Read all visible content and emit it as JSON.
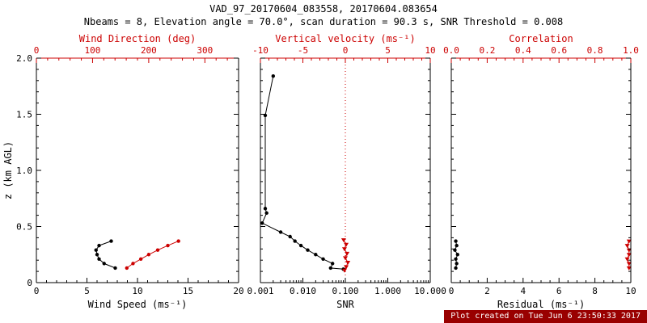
{
  "header": {
    "title": "VAD_97_20170604_083558, 20170604.083654",
    "subtitle": "Nbeams = 8, Elevation angle = 70.0°, scan duration = 90.3 s, SNR Threshold = 0.008"
  },
  "footer": {
    "created": "Plot created on Tue Jun  6 23:50:33 2017"
  },
  "colors": {
    "accent": "#cc0000",
    "black": "#000000",
    "footer_bg": "#990000",
    "footer_fg": "#ffffff"
  },
  "chart_data": [
    {
      "type": "line",
      "ylabel": "z (km AGL)",
      "ylim": [
        0,
        2
      ],
      "yticks": [
        0,
        0.5,
        1.0,
        1.5,
        2.0
      ],
      "ytick_labels": [
        "0",
        "0.5",
        "1.0",
        "1.5",
        "2.0"
      ],
      "x_bottom": {
        "label": "Wind Speed (ms⁻¹)",
        "lim": [
          0,
          20
        ],
        "ticks": [
          0,
          5,
          10,
          15,
          20
        ],
        "tick_labels": [
          "0",
          "5",
          "10",
          "15",
          "20"
        ],
        "scale": "linear",
        "minor_div": 5
      },
      "x_top": {
        "label": "Wind Direction (deg)",
        "lim": [
          0,
          360
        ],
        "ticks": [
          0,
          100,
          200,
          300
        ],
        "tick_labels": [
          "0",
          "100",
          "200",
          "300"
        ],
        "scale": "linear",
        "minor_div": 5
      },
      "series": [
        {
          "name": "wind-speed",
          "axis": "bottom",
          "color": "black",
          "marker": "circle",
          "points": [
            [
              7.4,
              0.37
            ],
            [
              6.2,
              0.33
            ],
            [
              5.9,
              0.29
            ],
            [
              6.0,
              0.25
            ],
            [
              6.2,
              0.21
            ],
            [
              6.7,
              0.17
            ],
            [
              7.8,
              0.13
            ]
          ]
        },
        {
          "name": "wind-direction",
          "axis": "top",
          "color": "red",
          "marker": "circle",
          "points": [
            [
              253,
              0.37
            ],
            [
              234,
              0.33
            ],
            [
              216,
              0.29
            ],
            [
              200,
              0.25
            ],
            [
              186,
              0.21
            ],
            [
              172,
              0.17
            ],
            [
              161,
              0.13
            ]
          ]
        }
      ],
      "vlines": []
    },
    {
      "type": "line",
      "ylabel": "",
      "ylim": [
        0,
        2
      ],
      "yticks": [
        0,
        0.5,
        1.0,
        1.5,
        2.0
      ],
      "x_bottom": {
        "label": "SNR",
        "lim": [
          0.001,
          10
        ],
        "ticks": [
          0.001,
          0.01,
          0.1,
          1,
          10
        ],
        "tick_labels": [
          "0.001",
          "0.010",
          "0.100",
          "1.000",
          "10.000"
        ],
        "scale": "log"
      },
      "x_top": {
        "label": "Vertical velocity (ms⁻¹)",
        "lim": [
          -10,
          10
        ],
        "ticks": [
          -10,
          -5,
          0,
          5,
          10
        ],
        "tick_labels": [
          "-10",
          "-5",
          "0",
          "5",
          "10"
        ],
        "scale": "linear",
        "minor_div": 5
      },
      "series": [
        {
          "name": "snr-profile",
          "axis": "bottom",
          "color": "black",
          "marker": "circle",
          "points": [
            [
              0.002,
              1.84
            ],
            [
              0.0013,
              1.49
            ],
            [
              0.0013,
              0.66
            ],
            [
              0.0014,
              0.62
            ],
            [
              0.0011,
              0.53
            ],
            [
              0.003,
              0.45
            ],
            [
              0.005,
              0.41
            ],
            [
              0.0065,
              0.37
            ],
            [
              0.009,
              0.33
            ],
            [
              0.013,
              0.29
            ],
            [
              0.02,
              0.25
            ],
            [
              0.03,
              0.21
            ],
            [
              0.05,
              0.17
            ],
            [
              0.045,
              0.13
            ],
            [
              0.09,
              0.12
            ]
          ]
        },
        {
          "name": "vertical-velocity",
          "axis": "top",
          "color": "red",
          "marker": "triangle",
          "points": [
            [
              -0.2,
              0.38
            ],
            [
              0.1,
              0.34
            ],
            [
              -0.1,
              0.3
            ],
            [
              0.2,
              0.26
            ],
            [
              0.0,
              0.22
            ],
            [
              0.3,
              0.18
            ],
            [
              0.1,
              0.14
            ],
            [
              -0.1,
              0.11
            ]
          ]
        }
      ],
      "vlines": [
        {
          "axis": "top",
          "x": 0,
          "color": "red",
          "style": "dotted"
        }
      ]
    },
    {
      "type": "line",
      "ylabel": "",
      "ylim": [
        0,
        2
      ],
      "yticks": [
        0,
        0.5,
        1.0,
        1.5,
        2.0
      ],
      "x_bottom": {
        "label": "Residual (ms⁻¹)",
        "lim": [
          0,
          10
        ],
        "ticks": [
          0,
          2,
          4,
          6,
          8,
          10
        ],
        "tick_labels": [
          "0",
          "2",
          "4",
          "6",
          "8",
          "10"
        ],
        "scale": "linear",
        "minor_div": 4
      },
      "x_top": {
        "label": "Correlation",
        "lim": [
          0,
          1
        ],
        "ticks": [
          0,
          0.2,
          0.4,
          0.6,
          0.8,
          1.0
        ],
        "tick_labels": [
          "0.0",
          "0.2",
          "0.4",
          "0.6",
          "0.8",
          "1.0"
        ],
        "scale": "linear",
        "minor_div": 4
      },
      "series": [
        {
          "name": "residual",
          "axis": "bottom",
          "color": "black",
          "marker": "circle",
          "points": [
            [
              0.25,
              0.37
            ],
            [
              0.3,
              0.33
            ],
            [
              0.2,
              0.29
            ],
            [
              0.35,
              0.25
            ],
            [
              0.25,
              0.21
            ],
            [
              0.3,
              0.17
            ],
            [
              0.25,
              0.13
            ]
          ]
        },
        {
          "name": "correlation",
          "axis": "top",
          "color": "red",
          "marker": "triangle",
          "points": [
            [
              0.99,
              0.37
            ],
            [
              0.98,
              0.33
            ],
            [
              0.99,
              0.29
            ],
            [
              0.99,
              0.25
            ],
            [
              0.98,
              0.21
            ],
            [
              0.99,
              0.17
            ],
            [
              0.99,
              0.13
            ]
          ]
        }
      ],
      "vlines": []
    }
  ]
}
